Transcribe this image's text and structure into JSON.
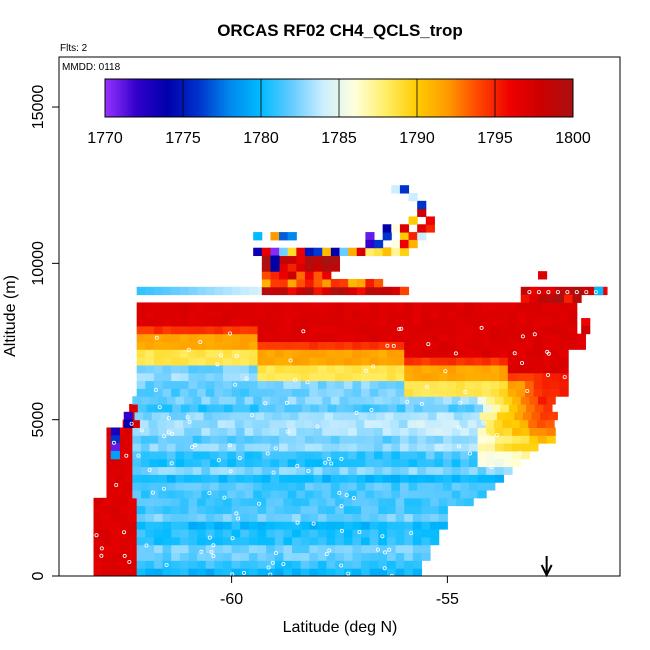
{
  "chart_data": {
    "type": "heatmap",
    "title": "ORCAS RF02 CH4_QCLS_trop",
    "annotation_flights": "Flts: 2",
    "annotation_date": "MMDD: 0118",
    "xlabel": "Latitude (deg N)",
    "ylabel": "Altitude (m)",
    "xlim": [
      -64.0,
      -51.0
    ],
    "ylim": [
      0,
      16600
    ],
    "x_ticks": [
      -60,
      -55
    ],
    "x_tick_labels": [
      "-60",
      "-55"
    ],
    "y_ticks": [
      0,
      5000,
      10000,
      15000
    ],
    "y_tick_labels": [
      "0",
      "5000",
      "10000",
      "15000"
    ],
    "colorbar": {
      "range": [
        1770,
        1800
      ],
      "ticks": [
        1770,
        1775,
        1780,
        1785,
        1790,
        1795,
        1800
      ],
      "tick_labels": [
        "1770",
        "1775",
        "1780",
        "1785",
        "1790",
        "1795",
        "1800"
      ],
      "stops": [
        {
          "value": 1770,
          "color": "#9933ff"
        },
        {
          "value": 1772,
          "color": "#3300cc"
        },
        {
          "value": 1774,
          "color": "#0000aa"
        },
        {
          "value": 1776,
          "color": "#0033cc"
        },
        {
          "value": 1778,
          "color": "#0088ee"
        },
        {
          "value": 1780,
          "color": "#00bbff"
        },
        {
          "value": 1782,
          "color": "#66ccff"
        },
        {
          "value": 1784,
          "color": "#cceeff"
        },
        {
          "value": 1786,
          "color": "#ffffdd"
        },
        {
          "value": 1788,
          "color": "#ffee66"
        },
        {
          "value": 1790,
          "color": "#ffcc00"
        },
        {
          "value": 1792,
          "color": "#ff9900"
        },
        {
          "value": 1794,
          "color": "#ff4400"
        },
        {
          "value": 1796,
          "color": "#ee0000"
        },
        {
          "value": 1798,
          "color": "#cc0000"
        },
        {
          "value": 1800,
          "color": "#aa1111"
        }
      ]
    },
    "marker_arrow_latitude": -52.7,
    "grid": false,
    "legend": "colorbar-top"
  }
}
